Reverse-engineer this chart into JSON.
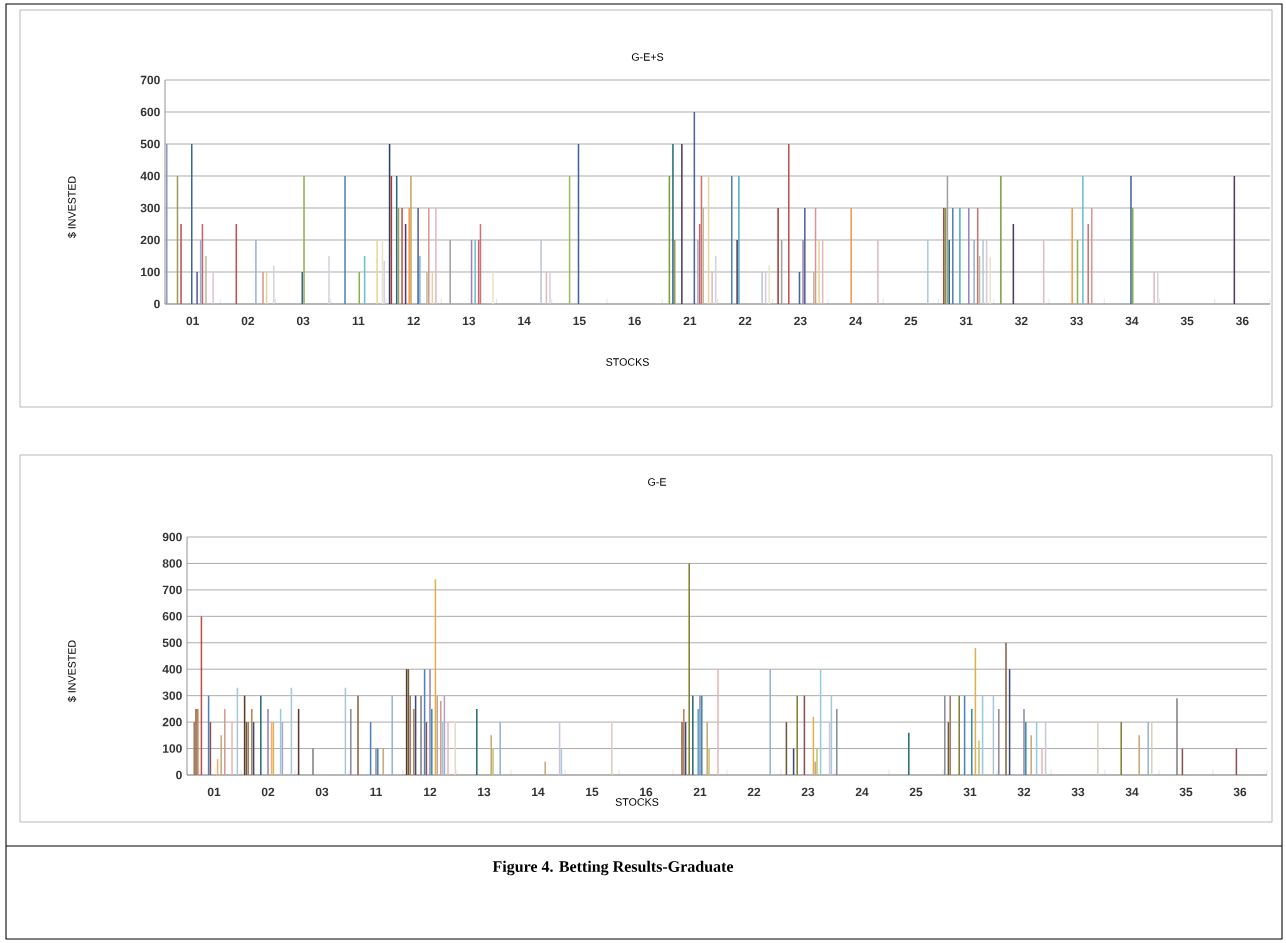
{
  "chart_data": [
    {
      "type": "bar",
      "title": "G-E+S",
      "xlabel": "STOCKS",
      "ylabel": "$ INVESTED",
      "grid": "y",
      "ylim": [
        0,
        700
      ],
      "yticks": [
        0,
        100,
        200,
        300,
        400,
        500,
        600,
        700
      ],
      "categories": [
        "01",
        "02",
        "03",
        "11",
        "12",
        "13",
        "14",
        "15",
        "16",
        "21",
        "22",
        "23",
        "24",
        "25",
        "31",
        "32",
        "33",
        "34",
        "35",
        "36"
      ],
      "series": [
        {
          "color": "#8c9dbe",
          "values": [
            500,
            null,
            null,
            null,
            null,
            null,
            null,
            null,
            null,
            null,
            null,
            null,
            null,
            null,
            null,
            null,
            null,
            null,
            null,
            null
          ]
        },
        {
          "color": "#2c3e6e",
          "values": [
            null,
            null,
            null,
            null,
            500,
            null,
            null,
            null,
            null,
            null,
            null,
            null,
            null,
            null,
            null,
            null,
            null,
            null,
            null,
            null
          ]
        },
        {
          "color": "#9f3b38",
          "values": [
            null,
            null,
            null,
            null,
            400,
            null,
            null,
            null,
            null,
            null,
            null,
            300,
            null,
            null,
            300,
            null,
            null,
            null,
            null,
            null
          ]
        },
        {
          "color": "#7e9d40",
          "values": [
            null,
            null,
            null,
            null,
            null,
            null,
            null,
            null,
            null,
            400,
            null,
            null,
            null,
            null,
            300,
            400,
            null,
            null,
            null,
            null
          ]
        },
        {
          "color": "#a0a0a0",
          "values": [
            null,
            null,
            null,
            null,
            null,
            200,
            null,
            null,
            null,
            null,
            null,
            200,
            null,
            null,
            400,
            null,
            null,
            null,
            null,
            null
          ]
        },
        {
          "color": "#276a7c",
          "values": [
            null,
            null,
            null,
            null,
            400,
            null,
            null,
            null,
            null,
            500,
            null,
            null,
            null,
            null,
            200,
            null,
            null,
            null,
            null,
            null
          ]
        },
        {
          "color": "#9b9b59",
          "values": [
            400,
            null,
            null,
            null,
            300,
            null,
            null,
            null,
            null,
            200,
            null,
            null,
            null,
            null,
            null,
            null,
            null,
            null,
            null,
            null
          ]
        },
        {
          "color": "#4f81bd",
          "values": [
            null,
            null,
            null,
            400,
            null,
            null,
            null,
            null,
            null,
            null,
            400,
            null,
            null,
            null,
            300,
            null,
            null,
            null,
            null,
            null
          ]
        },
        {
          "color": "#c0504d",
          "values": [
            250,
            250,
            null,
            null,
            300,
            null,
            null,
            null,
            null,
            null,
            null,
            500,
            null,
            null,
            null,
            null,
            null,
            null,
            null,
            null
          ]
        },
        {
          "color": "#9bbb59",
          "values": [
            null,
            null,
            null,
            null,
            null,
            null,
            null,
            400,
            null,
            null,
            null,
            null,
            null,
            null,
            null,
            null,
            null,
            null,
            null,
            null
          ]
        },
        {
          "color": "#4d3b62",
          "values": [
            null,
            null,
            null,
            null,
            250,
            null,
            null,
            null,
            null,
            500,
            200,
            null,
            null,
            null,
            null,
            250,
            null,
            null,
            null,
            400
          ]
        },
        {
          "color": "#4bacc6",
          "values": [
            null,
            null,
            null,
            null,
            null,
            null,
            null,
            null,
            null,
            null,
            400,
            null,
            null,
            null,
            300,
            null,
            null,
            null,
            null,
            null
          ]
        },
        {
          "color": "#f79646",
          "values": [
            null,
            null,
            null,
            null,
            300,
            null,
            null,
            null,
            null,
            null,
            null,
            null,
            300,
            null,
            null,
            null,
            300,
            null,
            null,
            null
          ]
        },
        {
          "color": "#c9a060",
          "values": [
            null,
            null,
            null,
            null,
            400,
            null,
            null,
            null,
            null,
            null,
            null,
            null,
            null,
            null,
            null,
            null,
            null,
            null,
            null,
            null
          ]
        },
        {
          "color": "#3a679c",
          "values": [
            500,
            null,
            100,
            null,
            null,
            null,
            null,
            500,
            null,
            null,
            null,
            100,
            null,
            null,
            null,
            null,
            null,
            400,
            null,
            null
          ]
        },
        {
          "color": "#8db04a",
          "values": [
            null,
            null,
            400,
            100,
            null,
            null,
            null,
            null,
            null,
            null,
            null,
            null,
            null,
            null,
            null,
            null,
            200,
            300,
            null,
            null
          ]
        },
        {
          "color": "#9983b5",
          "values": [
            null,
            null,
            null,
            null,
            null,
            200,
            null,
            null,
            null,
            null,
            null,
            200,
            null,
            null,
            300,
            null,
            null,
            null,
            null,
            null
          ]
        },
        {
          "color": "#4f5fa0",
          "values": [
            100,
            null,
            null,
            null,
            300,
            null,
            null,
            null,
            null,
            600,
            null,
            300,
            null,
            null,
            null,
            null,
            null,
            null,
            null,
            null
          ]
        },
        {
          "color": "#6fbdd1",
          "values": [
            null,
            null,
            null,
            150,
            150,
            200,
            null,
            null,
            null,
            null,
            null,
            null,
            null,
            null,
            null,
            null,
            400,
            null,
            null,
            null
          ]
        },
        {
          "color": "#95b3d7",
          "values": [
            200,
            200,
            null,
            null,
            null,
            null,
            null,
            null,
            null,
            200,
            null,
            null,
            null,
            null,
            200,
            null,
            null,
            null,
            null,
            null
          ]
        },
        {
          "color": "#d06070",
          "values": [
            250,
            null,
            null,
            null,
            null,
            200,
            null,
            null,
            null,
            250,
            null,
            null,
            null,
            null,
            null,
            null,
            null,
            null,
            null,
            null
          ]
        },
        {
          "color": "#cd7371",
          "values": [
            null,
            null,
            null,
            null,
            null,
            250,
            null,
            null,
            null,
            400,
            null,
            null,
            null,
            null,
            300,
            null,
            250,
            null,
            null,
            null
          ]
        },
        {
          "color": "#c3b89b",
          "values": [
            150,
            null,
            null,
            null,
            100,
            null,
            null,
            null,
            null,
            300,
            null,
            100,
            null,
            null,
            150,
            null,
            null,
            null,
            null,
            null
          ]
        },
        {
          "color": "#d99694",
          "values": [
            null,
            100,
            null,
            null,
            300,
            null,
            null,
            null,
            null,
            null,
            null,
            300,
            null,
            null,
            null,
            null,
            300,
            null,
            null,
            null
          ]
        },
        {
          "color": "#b3c7d7",
          "values": [
            null,
            null,
            null,
            null,
            null,
            null,
            200,
            null,
            null,
            null,
            100,
            null,
            null,
            200,
            200,
            null,
            null,
            null,
            null,
            null
          ]
        },
        {
          "color": "#e6d4a0",
          "values": [
            null,
            100,
            null,
            200,
            100,
            null,
            null,
            null,
            null,
            400,
            null,
            200,
            null,
            null,
            null,
            null,
            null,
            null,
            null,
            null
          ]
        },
        {
          "color": "#d8c8d8",
          "values": [
            100,
            null,
            null,
            null,
            null,
            null,
            null,
            null,
            null,
            null,
            100,
            null,
            null,
            null,
            200,
            null,
            null,
            null,
            null,
            null
          ]
        },
        {
          "color": "#e0b8c0",
          "values": [
            null,
            null,
            null,
            null,
            300,
            null,
            100,
            null,
            null,
            100,
            null,
            200,
            200,
            null,
            null,
            200,
            null,
            100,
            null,
            null
          ]
        },
        {
          "color": "#e8e4c8",
          "values": [
            null,
            null,
            null,
            200,
            null,
            100,
            null,
            null,
            null,
            null,
            120,
            null,
            null,
            null,
            145,
            null,
            null,
            null,
            null,
            null
          ]
        },
        {
          "color": "#d0d4dc",
          "values": [
            null,
            120,
            150,
            135,
            null,
            null,
            100,
            null,
            null,
            150,
            null,
            null,
            null,
            null,
            null,
            null,
            null,
            100,
            null,
            null
          ]
        }
      ]
    },
    {
      "type": "bar",
      "title": "G-E",
      "xlabel": "STOCKS",
      "ylabel": "$ INVESTED",
      "grid": "y",
      "ylim": [
        0,
        900
      ],
      "yticks": [
        0,
        100,
        200,
        300,
        400,
        500,
        600,
        700,
        800,
        900
      ],
      "categories": [
        "01",
        "02",
        "03",
        "11",
        "12",
        "13",
        "14",
        "15",
        "16",
        "21",
        "22",
        "23",
        "24",
        "25",
        "31",
        "32",
        "33",
        "34",
        "35",
        "36"
      ],
      "annotations": [
        "Figure 4. Betting Results-Graduate"
      ],
      "series": [
        {
          "color": "#8a8aa0",
          "values": [
            null,
            null,
            null,
            250,
            null,
            null,
            null,
            null,
            null,
            null,
            null,
            null,
            250,
            null,
            300,
            250,
            null,
            null,
            null,
            null
          ]
        },
        {
          "color": "#5c3a2a",
          "values": [
            null,
            300,
            250,
            null,
            400,
            null,
            null,
            null,
            null,
            null,
            null,
            null,
            null,
            null,
            null,
            null,
            null,
            null,
            null,
            null
          ]
        },
        {
          "color": "#6b5a3a",
          "values": [
            null,
            200,
            null,
            null,
            400,
            null,
            null,
            null,
            null,
            null,
            null,
            200,
            null,
            null,
            200,
            null,
            null,
            null,
            null,
            null
          ]
        },
        {
          "color": "#a07860",
          "values": [
            200,
            200,
            null,
            null,
            300,
            null,
            null,
            null,
            null,
            null,
            null,
            null,
            null,
            null,
            300,
            null,
            null,
            null,
            null,
            null
          ]
        },
        {
          "color": "#8a6040",
          "values": [
            250,
            null,
            null,
            300,
            null,
            null,
            null,
            null,
            null,
            200,
            null,
            null,
            null,
            null,
            null,
            500,
            null,
            null,
            null,
            null
          ]
        },
        {
          "color": "#c08050",
          "values": [
            250,
            250,
            null,
            null,
            250,
            null,
            null,
            null,
            null,
            250,
            null,
            null,
            null,
            null,
            null,
            null,
            null,
            null,
            null,
            null
          ]
        },
        {
          "color": "#3a4a7a",
          "values": [
            null,
            200,
            null,
            null,
            300,
            null,
            null,
            null,
            null,
            200,
            null,
            100,
            null,
            null,
            null,
            400,
            null,
            null,
            null,
            null
          ]
        },
        {
          "color": "#c0504d",
          "values": [
            600,
            null,
            null,
            null,
            null,
            null,
            null,
            null,
            null,
            null,
            null,
            null,
            null,
            null,
            null,
            null,
            null,
            null,
            null,
            null
          ]
        },
        {
          "color": "#7e8030",
          "values": [
            null,
            null,
            null,
            null,
            null,
            null,
            null,
            null,
            null,
            800,
            null,
            300,
            null,
            null,
            300,
            null,
            null,
            200,
            null,
            null
          ]
        },
        {
          "color": "#808080",
          "values": [
            null,
            null,
            100,
            null,
            300,
            null,
            null,
            null,
            null,
            null,
            null,
            null,
            null,
            null,
            null,
            null,
            null,
            null,
            290,
            null
          ]
        },
        {
          "color": "#276a7c",
          "values": [
            null,
            300,
            null,
            null,
            null,
            250,
            null,
            null,
            null,
            300,
            null,
            null,
            null,
            160,
            null,
            null,
            null,
            null,
            null,
            null
          ]
        },
        {
          "color": "#4f81bd",
          "values": [
            300,
            null,
            null,
            200,
            400,
            null,
            null,
            null,
            null,
            null,
            null,
            null,
            null,
            null,
            300,
            null,
            null,
            null,
            null,
            null
          ]
        },
        {
          "color": "#8c5050",
          "values": [
            200,
            null,
            null,
            null,
            200,
            null,
            null,
            null,
            null,
            null,
            null,
            300,
            null,
            null,
            null,
            null,
            null,
            null,
            100,
            100
          ]
        },
        {
          "color": "#4bacc6",
          "values": [
            null,
            null,
            null,
            null,
            null,
            null,
            null,
            null,
            null,
            250,
            null,
            null,
            null,
            null,
            null,
            null,
            null,
            null,
            null,
            null
          ]
        },
        {
          "color": "#9983b5",
          "values": [
            null,
            250,
            null,
            100,
            400,
            null,
            null,
            null,
            null,
            300,
            null,
            null,
            null,
            null,
            null,
            250,
            null,
            null,
            null,
            null
          ]
        },
        {
          "color": "#358ea6",
          "values": [
            null,
            null,
            null,
            100,
            250,
            null,
            null,
            null,
            null,
            300,
            null,
            null,
            null,
            null,
            250,
            200,
            null,
            null,
            null,
            null
          ]
        },
        {
          "color": "#f9ab6b",
          "values": [
            60,
            200,
            null,
            null,
            null,
            null,
            null,
            null,
            null,
            null,
            null,
            null,
            null,
            null,
            null,
            null,
            null,
            null,
            null,
            null
          ]
        },
        {
          "color": "#e0b050",
          "values": [
            null,
            200,
            null,
            null,
            740,
            null,
            null,
            null,
            null,
            null,
            null,
            220,
            null,
            null,
            480,
            null,
            null,
            null,
            null,
            null
          ]
        },
        {
          "color": "#c8a878",
          "values": [
            150,
            null,
            null,
            100,
            300,
            150,
            50,
            null,
            null,
            200,
            null,
            50,
            null,
            null,
            null,
            150,
            null,
            150,
            null,
            null
          ]
        },
        {
          "color": "#c3c36b",
          "values": [
            null,
            null,
            null,
            null,
            null,
            100,
            null,
            null,
            null,
            100,
            null,
            100,
            null,
            null,
            130,
            null,
            null,
            null,
            null,
            null
          ]
        },
        {
          "color": "#d99694",
          "values": [
            250,
            null,
            null,
            null,
            280,
            null,
            null,
            null,
            null,
            null,
            null,
            null,
            null,
            null,
            null,
            null,
            null,
            null,
            null,
            null
          ]
        },
        {
          "color": "#93cddd",
          "values": [
            null,
            250,
            null,
            null,
            200,
            null,
            null,
            null,
            null,
            null,
            null,
            400,
            null,
            null,
            300,
            200,
            null,
            null,
            null,
            null
          ]
        },
        {
          "color": "#b3a2c7",
          "values": [
            null,
            200,
            null,
            null,
            300,
            null,
            null,
            null,
            null,
            null,
            null,
            null,
            null,
            null,
            null,
            null,
            null,
            null,
            null,
            null
          ]
        },
        {
          "color": "#95b3d7",
          "values": [
            null,
            null,
            null,
            300,
            null,
            200,
            null,
            null,
            null,
            null,
            400,
            null,
            null,
            null,
            null,
            null,
            null,
            200,
            null,
            null
          ]
        },
        {
          "color": "#e8b8b8",
          "values": [
            200,
            null,
            null,
            null,
            200,
            null,
            null,
            null,
            null,
            400,
            null,
            null,
            null,
            null,
            null,
            100,
            null,
            null,
            null,
            null
          ]
        },
        {
          "color": "#d8d0b8",
          "values": [
            null,
            null,
            null,
            null,
            null,
            null,
            null,
            200,
            null,
            null,
            null,
            null,
            null,
            null,
            null,
            null,
            200,
            200,
            null,
            null
          ]
        },
        {
          "color": "#c8c8d8",
          "values": [
            null,
            null,
            null,
            null,
            null,
            null,
            200,
            null,
            null,
            null,
            null,
            200,
            null,
            null,
            null,
            200,
            null,
            null,
            null,
            null
          ]
        },
        {
          "color": "#a8c8d8",
          "values": [
            330,
            330,
            330,
            null,
            null,
            null,
            100,
            null,
            null,
            null,
            null,
            300,
            null,
            null,
            300,
            null,
            null,
            null,
            null,
            null
          ]
        },
        {
          "color": "#e8d8c8",
          "values": [
            null,
            null,
            null,
            null,
            200,
            null,
            null,
            null,
            null,
            null,
            null,
            null,
            null,
            null,
            null,
            null,
            null,
            null,
            null,
            null
          ]
        }
      ]
    }
  ]
}
